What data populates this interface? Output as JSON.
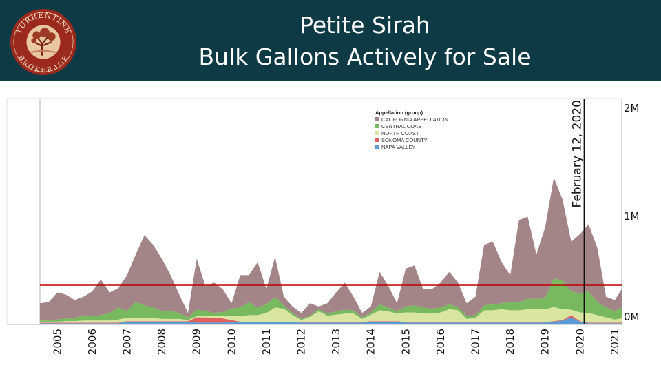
{
  "header": {
    "title_line1": "Petite Sirah",
    "title_line2": "Bulk Gallons Actively for Sale",
    "logo_text_top": "TURRENTINE",
    "logo_text_bottom": "BROKERAGE"
  },
  "colors": {
    "header_bg": "#0e3a46",
    "logo_red": "#9c2a1c",
    "reference_line": "#c00000"
  },
  "chart_data": {
    "type": "area",
    "stacked": true,
    "title": "",
    "xlabel": "",
    "ylabel": "",
    "xlim": [
      2004.5,
      2021.2
    ],
    "ylim": [
      0,
      2.1
    ],
    "y_unit": "M gallons",
    "y_ticks": [
      {
        "value": 2,
        "label": "2M"
      },
      {
        "value": 1,
        "label": "1M"
      },
      {
        "value": 0,
        "label": "0M"
      }
    ],
    "y_axis_side": "right",
    "x_ticks": [
      {
        "value": 2005,
        "label": "2005"
      },
      {
        "value": 2006,
        "label": "2006"
      },
      {
        "value": 2007,
        "label": "2007"
      },
      {
        "value": 2008,
        "label": "2008"
      },
      {
        "value": 2009,
        "label": "2009"
      },
      {
        "value": 2010,
        "label": "2010"
      },
      {
        "value": 2011,
        "label": "2011"
      },
      {
        "value": 2012,
        "label": "2012"
      },
      {
        "value": 2013,
        "label": "2013"
      },
      {
        "value": 2014,
        "label": "2014"
      },
      {
        "value": 2015,
        "label": "2015"
      },
      {
        "value": 2016,
        "label": "2016"
      },
      {
        "value": 2017,
        "label": "2017"
      },
      {
        "value": 2018,
        "label": "2018"
      },
      {
        "value": 2019,
        "label": "2019"
      },
      {
        "value": 2020,
        "label": "2020"
      },
      {
        "value": 2021,
        "label": "2021"
      }
    ],
    "legend": {
      "title": "Appellation (group)",
      "placement": "top-center"
    },
    "reference_line": {
      "value": 0.36
    },
    "annotation": {
      "x": 2020.12,
      "label": "February 12, 2020"
    },
    "x": [
      2004.5,
      2004.75,
      2005,
      2005.25,
      2005.5,
      2005.75,
      2006,
      2006.25,
      2006.5,
      2006.75,
      2007,
      2007.25,
      2007.5,
      2007.75,
      2008,
      2008.25,
      2008.5,
      2008.75,
      2009,
      2009.25,
      2009.5,
      2009.75,
      2010,
      2010.25,
      2010.5,
      2010.75,
      2011,
      2011.25,
      2011.5,
      2011.75,
      2012,
      2012.25,
      2012.5,
      2012.75,
      2013,
      2013.25,
      2013.5,
      2013.75,
      2014,
      2014.25,
      2014.5,
      2014.75,
      2015,
      2015.25,
      2015.5,
      2015.75,
      2016,
      2016.25,
      2016.5,
      2016.75,
      2017,
      2017.25,
      2017.5,
      2017.75,
      2018,
      2018.25,
      2018.5,
      2018.75,
      2019,
      2019.25,
      2019.5,
      2019.75,
      2020,
      2020.25,
      2020.5,
      2020.75,
      2021,
      2021.2
    ],
    "series": [
      {
        "name": "NAPA VALLEY",
        "color": "#5b9bd5",
        "values": [
          0.005,
          0.005,
          0.005,
          0.005,
          0.005,
          0.005,
          0.005,
          0.005,
          0.005,
          0.005,
          0.02,
          0.02,
          0.02,
          0.02,
          0.02,
          0.02,
          0.02,
          0.02,
          0.01,
          0.01,
          0.01,
          0.01,
          0.015,
          0.015,
          0.015,
          0.015,
          0.015,
          0.015,
          0.015,
          0.015,
          0.01,
          0.01,
          0.01,
          0.01,
          0.01,
          0.01,
          0.01,
          0.01,
          0.02,
          0.02,
          0.02,
          0.02,
          0.01,
          0.01,
          0.01,
          0.01,
          0.01,
          0.01,
          0.01,
          0.01,
          0.01,
          0.01,
          0.01,
          0.01,
          0.01,
          0.01,
          0.01,
          0.01,
          0.01,
          0.02,
          0.03,
          0.06,
          0.02,
          0.005,
          0.005,
          0.005,
          0.005,
          0.005
        ]
      },
      {
        "name": "SONOMA COUNTY",
        "color": "#e06060",
        "values": [
          0.005,
          0.005,
          0.005,
          0.005,
          0.005,
          0.005,
          0.005,
          0.005,
          0.005,
          0.005,
          0.005,
          0.005,
          0.005,
          0.005,
          0.005,
          0.005,
          0.005,
          0.005,
          0.05,
          0.05,
          0.045,
          0.04,
          0.02,
          0.005,
          0.005,
          0.005,
          0.005,
          0.005,
          0.005,
          0.005,
          0.005,
          0.005,
          0.005,
          0.005,
          0.005,
          0.005,
          0.005,
          0.005,
          0.005,
          0.005,
          0.005,
          0.005,
          0.005,
          0.005,
          0.005,
          0.005,
          0.005,
          0.005,
          0.005,
          0.005,
          0.005,
          0.005,
          0.005,
          0.005,
          0.005,
          0.005,
          0.005,
          0.005,
          0.005,
          0.005,
          0.005,
          0.02,
          0.005,
          0.005,
          0.005,
          0.005,
          0.005,
          0.005
        ]
      },
      {
        "name": "NORTH COAST",
        "color": "#d8e6a2",
        "values": [
          0.01,
          0.01,
          0.01,
          0.015,
          0.015,
          0.02,
          0.02,
          0.02,
          0.02,
          0.03,
          0.03,
          0.03,
          0.03,
          0.03,
          0.02,
          0.02,
          0.02,
          0.01,
          0.01,
          0.015,
          0.015,
          0.02,
          0.04,
          0.05,
          0.06,
          0.06,
          0.08,
          0.13,
          0.12,
          0.06,
          0.02,
          0.05,
          0.1,
          0.06,
          0.07,
          0.08,
          0.08,
          0.03,
          0.06,
          0.1,
          0.09,
          0.07,
          0.09,
          0.09,
          0.08,
          0.08,
          0.09,
          0.12,
          0.11,
          0.03,
          0.04,
          0.11,
          0.11,
          0.12,
          0.11,
          0.11,
          0.12,
          0.12,
          0.12,
          0.13,
          0.1,
          0.05,
          0.08,
          0.09,
          0.07,
          0.05,
          0.03,
          0.04
        ]
      },
      {
        "name": "CENTRAL COAST",
        "color": "#78b85e",
        "values": [
          0.01,
          0.01,
          0.02,
          0.025,
          0.025,
          0.05,
          0.04,
          0.05,
          0.07,
          0.11,
          0.065,
          0.145,
          0.115,
          0.095,
          0.075,
          0.075,
          0.055,
          0.025,
          0.06,
          0.045,
          0.03,
          0.04,
          0.065,
          0.08,
          0.12,
          0.07,
          0.08,
          0.1,
          0.03,
          0.02,
          0.01,
          0.01,
          0.02,
          0.02,
          0.03,
          0.035,
          0.03,
          0.015,
          0.02,
          0.055,
          0.035,
          0.02,
          0.055,
          0.065,
          0.055,
          0.045,
          0.045,
          0.045,
          0.03,
          0.025,
          0.025,
          0.045,
          0.055,
          0.055,
          0.075,
          0.075,
          0.095,
          0.095,
          0.105,
          0.265,
          0.265,
          0.17,
          0.175,
          0.2,
          0.12,
          0.09,
          0.08,
          0.1
        ]
      },
      {
        "name": "CALIFORNIA APPELLATION",
        "color": "#a38587",
        "values": [
          0.16,
          0.17,
          0.25,
          0.22,
          0.17,
          0.17,
          0.23,
          0.33,
          0.19,
          0.18,
          0.33,
          0.44,
          0.65,
          0.58,
          0.48,
          0.33,
          0.17,
          0.04,
          0.47,
          0.23,
          0.28,
          0.21,
          0.05,
          0.3,
          0.25,
          0.42,
          0.14,
          0.37,
          0.08,
          0.06,
          0.055,
          0.115,
          0.025,
          0.095,
          0.175,
          0.25,
          0.125,
          0.04,
          0.055,
          0.3,
          0.2,
          0.075,
          0.35,
          0.37,
          0.17,
          0.18,
          0.23,
          0.3,
          0.225,
          0.12,
          0.17,
          0.56,
          0.58,
          0.38,
          0.25,
          0.76,
          0.76,
          0.41,
          0.65,
          0.93,
          0.75,
          0.46,
          0.55,
          0.62,
          0.5,
          0.1,
          0.1,
          0.17
        ]
      }
    ],
    "legend_order": [
      "CALIFORNIA APPELLATION",
      "CENTRAL COAST",
      "NORTH COAST",
      "SONOMA COUNTY",
      "NAPA VALLEY"
    ]
  }
}
